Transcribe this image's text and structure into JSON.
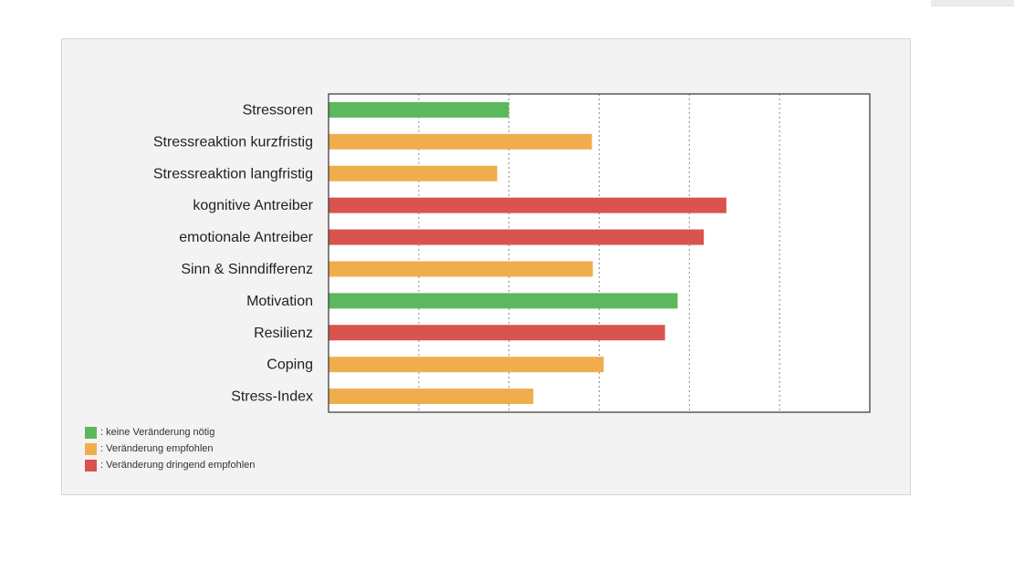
{
  "chart_data": {
    "type": "bar",
    "orientation": "horizontal",
    "categories": [
      "Stressoren",
      "Stressreaktion kurzfristig",
      "Stressreaktion langfristig",
      "kognitive Antreiber",
      "emotionale Antreiber",
      "Sinn & Sinndifferenz",
      "Motivation",
      "Resilienz",
      "Coping",
      "Stress-Index"
    ],
    "values": [
      20,
      29.2,
      18.7,
      44.1,
      41.6,
      29.3,
      38.7,
      37.3,
      30.5,
      22.7
    ],
    "statuses": [
      "green",
      "orange",
      "orange",
      "red",
      "red",
      "orange",
      "green",
      "red",
      "orange",
      "orange"
    ],
    "xlim": [
      0,
      60
    ],
    "gridlines": [
      10,
      20,
      30,
      40,
      50
    ],
    "grid": true,
    "legend_position": "bottom-left"
  },
  "colors": {
    "green": "#5cb85c",
    "orange": "#f0ad4e",
    "red": "#d9534f"
  },
  "legend": [
    {
      "color_key": "green",
      "label": ": keine Veränderung nötig"
    },
    {
      "color_key": "orange",
      "label": ": Veränderung empfohlen"
    },
    {
      "color_key": "red",
      "label": ": Veränderung dringend empfohlen"
    }
  ]
}
